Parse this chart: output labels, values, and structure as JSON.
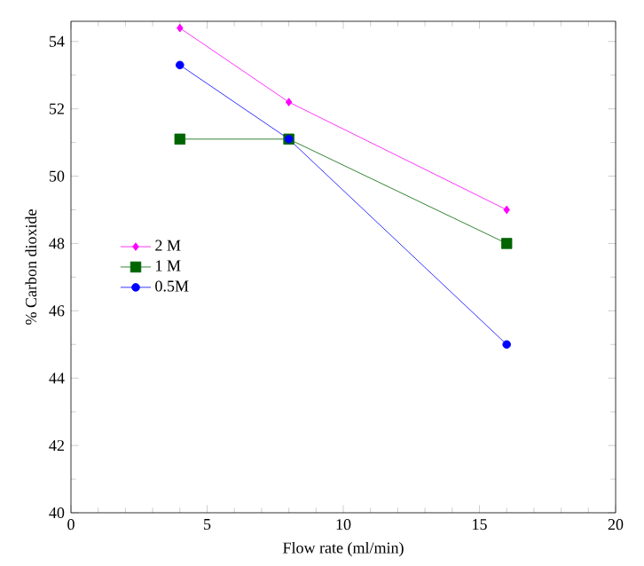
{
  "chart_data": {
    "type": "line",
    "xlabel": "Flow rate (ml/min)",
    "ylabel": "% Carbon dioxide",
    "xlim": [
      0,
      20
    ],
    "xticks": [
      0,
      5,
      10,
      15,
      20
    ],
    "ylim": [
      40,
      54.6
    ],
    "yticks": [
      40,
      42,
      44,
      46,
      48,
      50,
      52,
      54
    ],
    "legend": "left",
    "line_style": "solid",
    "series": [
      {
        "name": "2  M",
        "color": "#ff00ff",
        "marker": "diamond",
        "x": [
          4,
          8,
          16
        ],
        "values": [
          54.4,
          52.2,
          49.0
        ]
      },
      {
        "name": "1  M",
        "color": "#006400",
        "marker": "square",
        "x": [
          4,
          8,
          16
        ],
        "values": [
          51.1,
          51.1,
          48.0
        ]
      },
      {
        "name": "0.5M",
        "color": "#0000ff",
        "marker": "circle",
        "x": [
          4,
          8,
          16
        ],
        "values": [
          53.3,
          51.1,
          45.0
        ]
      }
    ]
  }
}
